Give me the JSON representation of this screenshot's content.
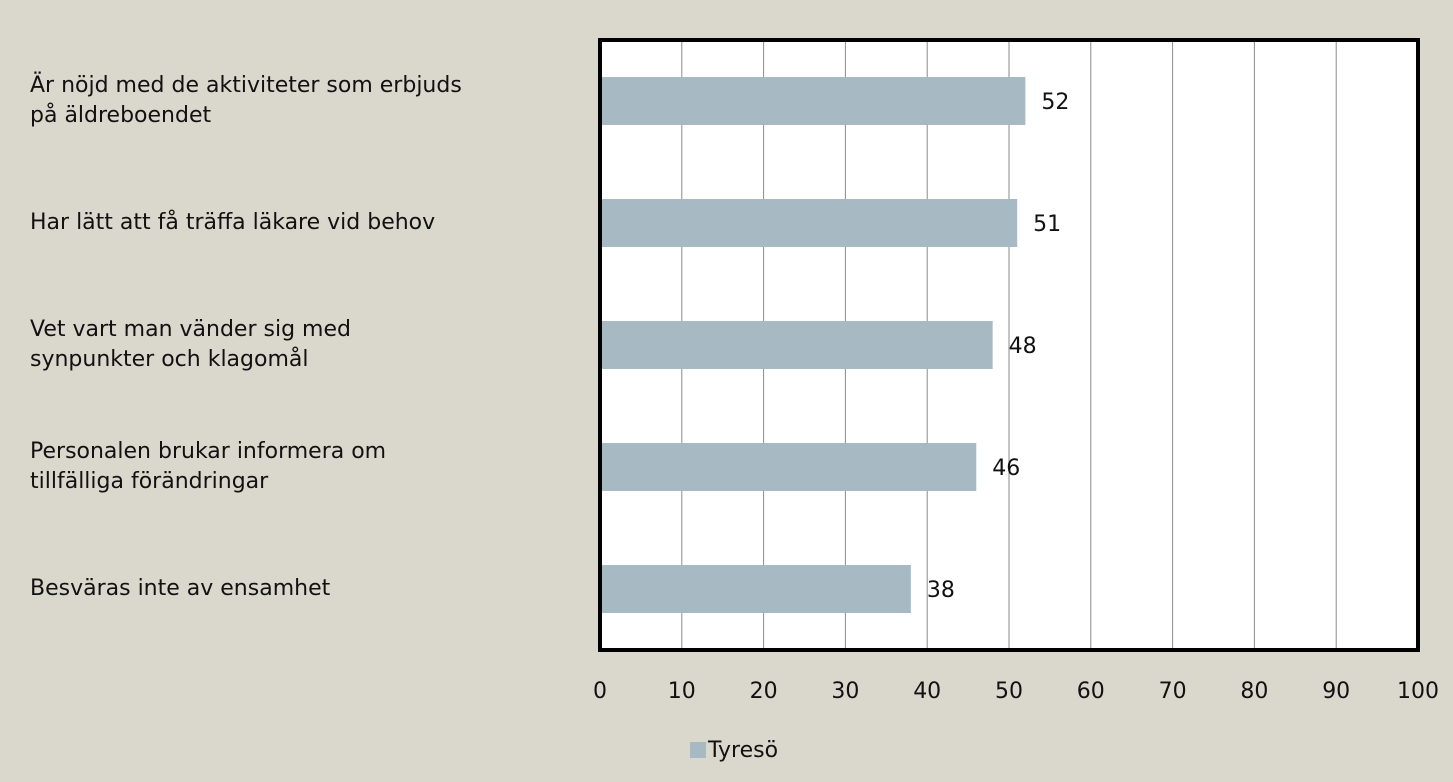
{
  "chart_data": {
    "type": "bar",
    "orientation": "horizontal",
    "categories": [
      "Är nöjd med de aktiviteter som erbjuds\npå äldreboendet",
      "Har lätt att få träffa läkare vid behov",
      "Vet vart man vänder sig med\nsynpunkter och klagomål",
      "Personalen brukar informera om\ntillfälliga förändringar",
      "Besväras inte av ensamhet"
    ],
    "series": [
      {
        "name": "Tyresö",
        "color": "#a7b9c3",
        "values": [
          52,
          51,
          48,
          46,
          38
        ]
      }
    ],
    "xlim": [
      0,
      100
    ],
    "xticks": [
      0,
      10,
      20,
      30,
      40,
      50,
      60,
      70,
      80,
      90,
      100
    ],
    "grid": true,
    "legend": "bottom"
  }
}
